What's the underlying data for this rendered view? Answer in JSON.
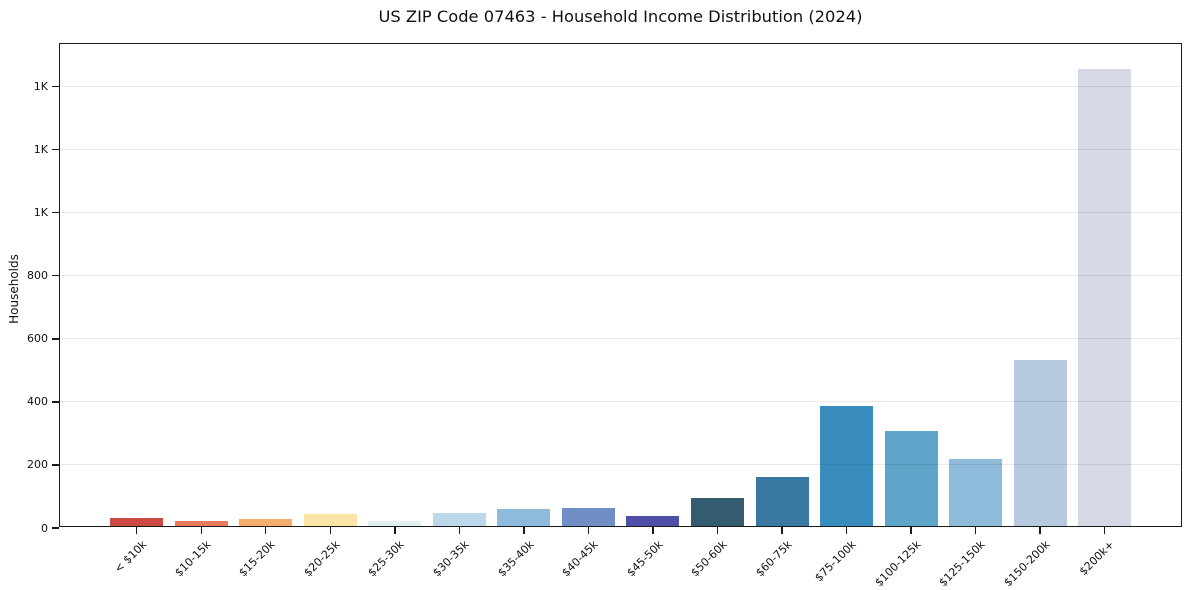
{
  "figure": {
    "background": "#ffffff"
  },
  "chart_data": {
    "type": "bar",
    "title": "US ZIP Code 07463 - Household Income Distribution (2024)",
    "xlabel": "",
    "ylabel": "Households",
    "categories": [
      "< $10k",
      "$10-15k",
      "$15-20k",
      "$20-25k",
      "$25-30k",
      "$30-35k",
      "$35-40k",
      "$40-45k",
      "$45-50k",
      "$50-60k",
      "$60-75k",
      "$75-100k",
      "$100-125k",
      "$125-150k",
      "$150-200k",
      "$200k+"
    ],
    "values": [
      25,
      15,
      22,
      38,
      17,
      42,
      55,
      57,
      32,
      90,
      155,
      380,
      300,
      212,
      525,
      1450
    ],
    "bar_colors": [
      "#CC4A42",
      "#E97B59",
      "#F5AE6B",
      "#FAE5A4",
      "#E3F0F2",
      "#BBD9EB",
      "#8EBADC",
      "#7090C5",
      "#504FA7",
      "#345B70",
      "#3779A1",
      "#388CBE",
      "#5FA5C9",
      "#8FBBDB",
      "#B6C9DF",
      "#D6D8E6"
    ],
    "ylim": [
      0,
      1535
    ],
    "yticks": [
      {
        "value": 0,
        "label": "0"
      },
      {
        "value": 200,
        "label": "200"
      },
      {
        "value": 400,
        "label": "400"
      },
      {
        "value": 600,
        "label": "600"
      },
      {
        "value": 800,
        "label": "800"
      },
      {
        "value": 1000,
        "label": "1K"
      },
      {
        "value": 1200,
        "label": "1K"
      },
      {
        "value": 1400,
        "label": "1K"
      }
    ],
    "grid": {
      "horizontal": true,
      "vertical": false,
      "color_hint": "#e8e8e8"
    },
    "legend_position": "none",
    "axis_color": "#1a1a1a"
  }
}
